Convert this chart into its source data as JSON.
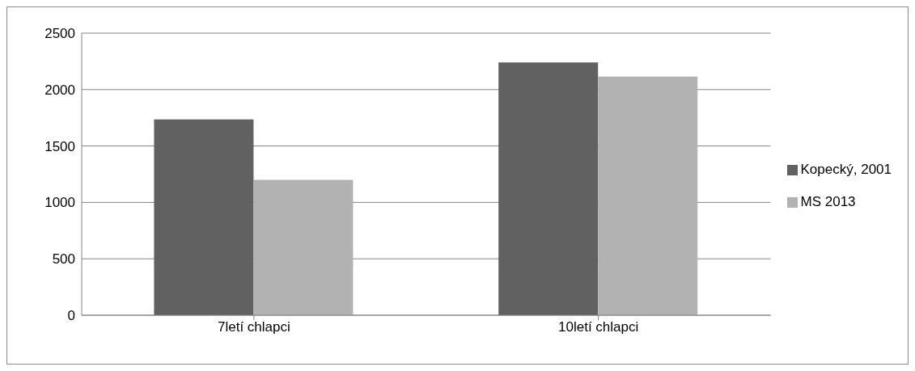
{
  "chart_data": {
    "type": "bar",
    "categories": [
      "7letí chlapci",
      "10letí chlapci"
    ],
    "series": [
      {
        "name": "Kopecký, 2001",
        "color": "#616161",
        "values": [
          1735,
          2240
        ]
      },
      {
        "name": "MS 2013",
        "color": "#b2b2b2",
        "values": [
          1200,
          2115
        ]
      }
    ],
    "ylim": [
      0,
      2500
    ],
    "yticks": [
      0,
      500,
      1000,
      1500,
      2000,
      2500
    ],
    "grid": "y",
    "legend": "right"
  }
}
